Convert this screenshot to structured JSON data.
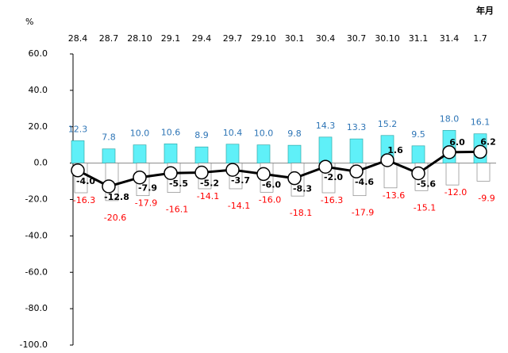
{
  "chart_data": {
    "type": "bar-line",
    "unit_label": "%",
    "x_unit_label": "年月",
    "categories": [
      "28.4",
      "28.7",
      "28.10",
      "29.1",
      "29.4",
      "29.7",
      "29.10",
      "30.1",
      "30.4",
      "30.7",
      "30.10",
      "31.1",
      "31.4",
      "1.7"
    ],
    "ylim": [
      -100,
      60
    ],
    "yticks": [
      {
        "value": 60,
        "label": "60.0"
      },
      {
        "value": 40,
        "label": "40.0"
      },
      {
        "value": 20,
        "label": "20.0"
      },
      {
        "value": 0,
        "label": "0.0"
      },
      {
        "value": -20,
        "label": "-20.0"
      },
      {
        "value": -40,
        "label": "-40.0"
      },
      {
        "value": -60,
        "label": "-60.0"
      },
      {
        "value": -80,
        "label": "-80.0"
      },
      {
        "value": -100,
        "label": "-100.0"
      }
    ],
    "series": [
      {
        "kind": "bar",
        "color": "#5ff0f8",
        "label_color": "#2e75b6",
        "values": [
          12.3,
          7.8,
          10.0,
          10.6,
          8.9,
          10.4,
          10.0,
          9.8,
          14.3,
          13.3,
          15.2,
          9.5,
          18.0,
          16.1
        ],
        "value_labels": [
          "12.3",
          "7.8",
          "10.0",
          "10.6",
          "8.9",
          "10.4",
          "10.0",
          "9.8",
          "14.3",
          "13.3",
          "15.2",
          "9.5",
          "18.0",
          "16.1"
        ]
      },
      {
        "kind": "bar",
        "color": "#ffffff",
        "label_color": "#ff0000",
        "values": [
          -16.3,
          -20.6,
          -17.9,
          -16.1,
          -14.1,
          -14.1,
          -16.0,
          -18.1,
          -16.3,
          -17.9,
          -13.6,
          -15.1,
          -12.0,
          -9.9
        ],
        "value_labels": [
          "-16.3",
          "-20.6",
          "-17.9",
          "-16.1",
          "-14.1",
          "-14.1",
          "-16.0",
          "-18.1",
          "-16.3",
          "-17.9",
          "-13.6",
          "-15.1",
          "-12.0",
          "-9.9"
        ]
      },
      {
        "kind": "line",
        "color": "#000000",
        "label_color": "#000000",
        "values": [
          -4.0,
          -12.8,
          -7.9,
          -5.5,
          -5.2,
          -3.7,
          -6.0,
          -8.3,
          -2.0,
          -4.6,
          1.6,
          -5.6,
          6.0,
          6.2
        ],
        "value_labels": [
          "-4.0",
          "-12.8",
          "-7.9",
          "-5.5",
          "-5.2",
          "-3.7",
          "-6.0",
          "-8.3",
          "-2.0",
          "-4.6",
          "1.6",
          "-5.6",
          "6.0",
          "6.2"
        ]
      }
    ]
  }
}
